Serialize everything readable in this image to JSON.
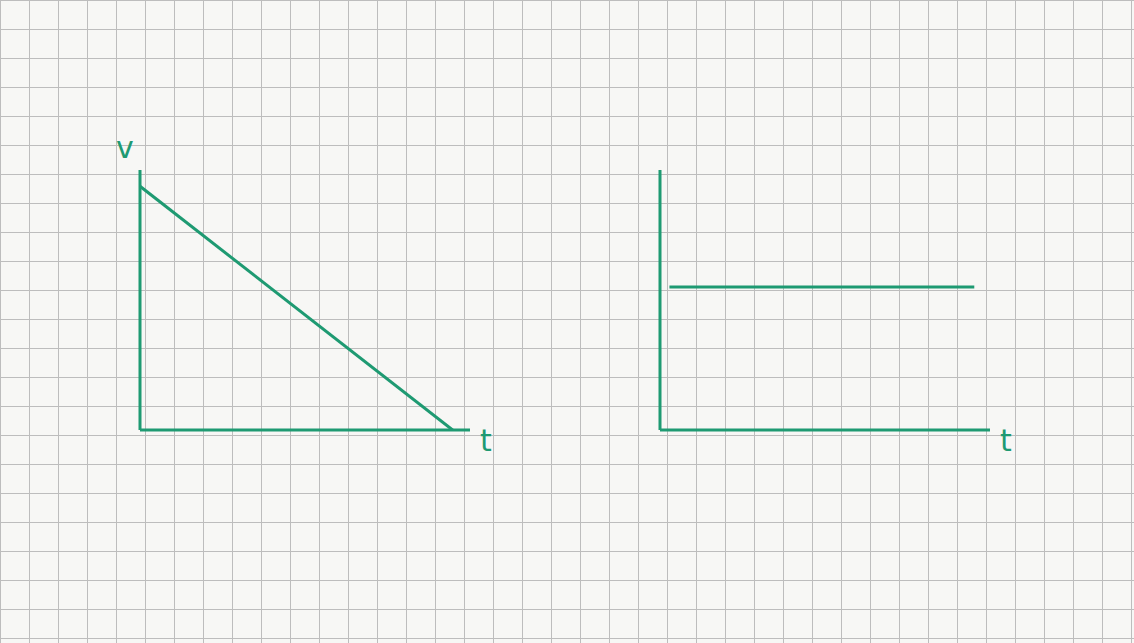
{
  "chart_data": [
    {
      "type": "line",
      "x_label": "t",
      "y_label": "v",
      "x": [
        0,
        9
      ],
      "values": [
        7.5,
        0
      ],
      "xlim": [
        0,
        9.5
      ],
      "ylim": [
        0,
        8
      ],
      "tick_labels": false,
      "color": "#1e9a72",
      "line_style": "solid"
    },
    {
      "type": "line",
      "x_label": "t",
      "x": [
        0.3,
        10
      ],
      "values": [
        4.4,
        4.4
      ],
      "xlim": [
        0,
        10.5
      ],
      "ylim": [
        0,
        8
      ],
      "tick_labels": false,
      "color": "#1e9a72",
      "line_style": "solid"
    }
  ]
}
